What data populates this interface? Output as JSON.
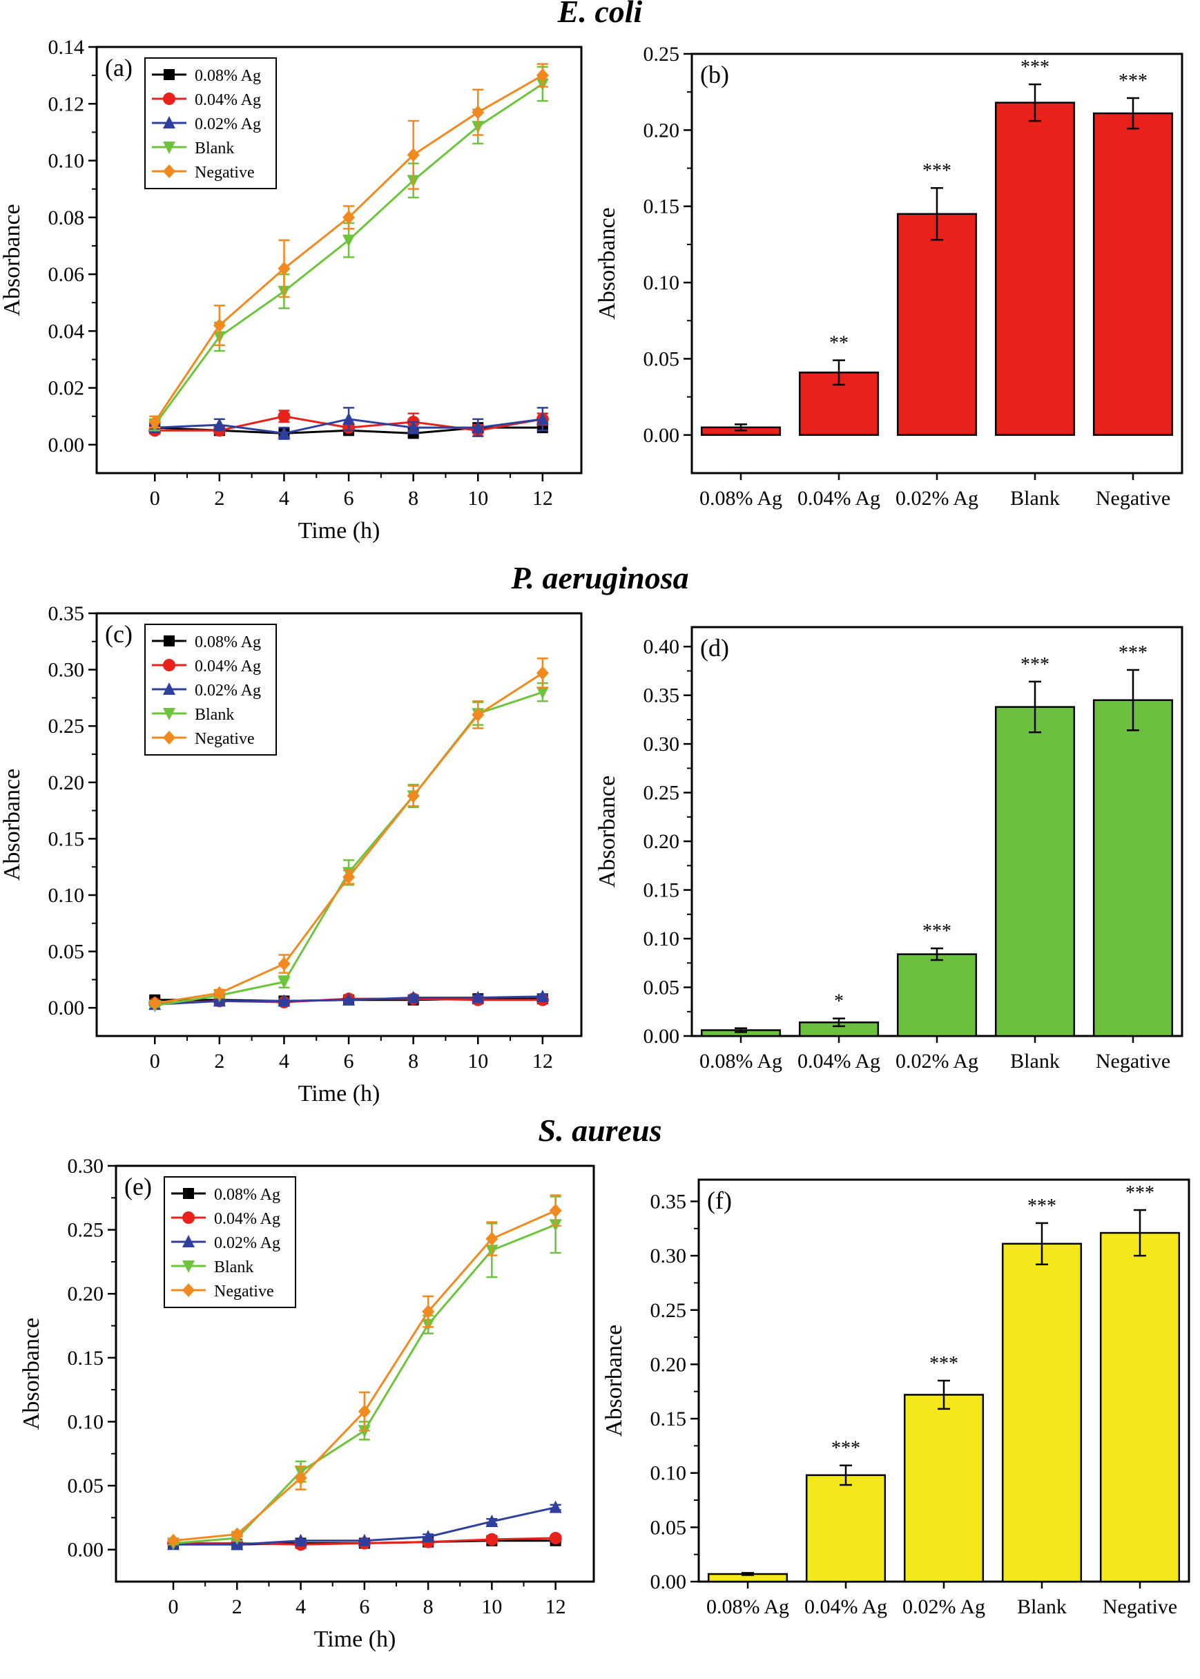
{
  "sections": [
    {
      "title": "E. coli"
    },
    {
      "title": "P. aeruginosa"
    },
    {
      "title": "S. aureus"
    }
  ],
  "colors": {
    "0.08% Ag": "#000000",
    "0.04% Ag": "#e8211a",
    "0.02% Ag": "#2e3f9e",
    "Blank": "#6cc43d",
    "Negative": "#f2891e"
  },
  "chart_data": [
    {
      "id": "a",
      "type": "line",
      "panel_label": "(a)",
      "section": "E. coli",
      "xlabel": "Time (h)",
      "ylabel": "Absorbance",
      "x": [
        0,
        2,
        4,
        6,
        8,
        10,
        12
      ],
      "xticks": [
        "0",
        "2",
        "4",
        "6",
        "8",
        "10",
        "12"
      ],
      "ylim": [
        -0.01,
        0.14
      ],
      "yticks": [
        "0.00",
        "0.02",
        "0.04",
        "0.06",
        "0.08",
        "0.10",
        "0.12",
        "0.14"
      ],
      "legend_position": "top-left",
      "series": [
        {
          "name": "0.08% Ag",
          "marker": "square",
          "values": [
            0.006,
            0.005,
            0.004,
            0.005,
            0.004,
            0.006,
            0.006
          ],
          "errors": [
            0.002,
            0.001,
            0.001,
            0.001,
            0.001,
            0.001,
            0.001
          ]
        },
        {
          "name": "0.04% Ag",
          "marker": "circle",
          "values": [
            0.005,
            0.005,
            0.01,
            0.006,
            0.008,
            0.005,
            0.009
          ],
          "errors": [
            0.001,
            0.001,
            0.002,
            0.001,
            0.003,
            0.002,
            0.002
          ]
        },
        {
          "name": "0.02% Ag",
          "marker": "triangle-up",
          "values": [
            0.006,
            0.007,
            0.004,
            0.009,
            0.006,
            0.006,
            0.009
          ],
          "errors": [
            0.001,
            0.002,
            0.002,
            0.004,
            0.002,
            0.003,
            0.004
          ]
        },
        {
          "name": "Blank",
          "marker": "triangle-down",
          "values": [
            0.007,
            0.038,
            0.054,
            0.072,
            0.093,
            0.112,
            0.127
          ],
          "errors": [
            0.002,
            0.005,
            0.006,
            0.006,
            0.006,
            0.006,
            0.006
          ]
        },
        {
          "name": "Negative",
          "marker": "diamond",
          "values": [
            0.008,
            0.042,
            0.062,
            0.08,
            0.102,
            0.117,
            0.13
          ],
          "errors": [
            0.002,
            0.007,
            0.01,
            0.004,
            0.012,
            0.008,
            0.004
          ]
        }
      ]
    },
    {
      "id": "b",
      "type": "bar",
      "panel_label": "(b)",
      "section": "E. coli",
      "xlabel": "",
      "ylabel": "Absorbance",
      "bar_color": "#e8211a",
      "categories": [
        "0.08% Ag",
        "0.04% Ag",
        "0.02% Ag",
        "Blank",
        "Negative"
      ],
      "values": [
        0.005,
        0.041,
        0.145,
        0.218,
        0.211
      ],
      "errors": [
        0.002,
        0.008,
        0.017,
        0.012,
        0.01
      ],
      "significance": [
        "",
        "**",
        "***",
        "***",
        "***"
      ],
      "ylim": [
        -0.025,
        0.25
      ],
      "yticks": [
        "0.00",
        "0.05",
        "0.10",
        "0.15",
        "0.20",
        "0.25"
      ]
    },
    {
      "id": "c",
      "type": "line",
      "panel_label": "(c)",
      "section": "P. aeruginosa",
      "xlabel": "Time (h)",
      "ylabel": "Absorbance",
      "x": [
        0,
        2,
        4,
        6,
        8,
        10,
        12
      ],
      "xticks": [
        "0",
        "2",
        "4",
        "6",
        "8",
        "10",
        "12"
      ],
      "ylim": [
        -0.025,
        0.35
      ],
      "yticks": [
        "0.00",
        "0.05",
        "0.10",
        "0.15",
        "0.20",
        "0.25",
        "0.30",
        "0.35"
      ],
      "legend_position": "top-left",
      "series": [
        {
          "name": "0.08% Ag",
          "marker": "square",
          "values": [
            0.007,
            0.007,
            0.006,
            0.007,
            0.007,
            0.008,
            0.008
          ],
          "errors": [
            0.002,
            0.001,
            0.001,
            0.001,
            0.001,
            0.001,
            0.001
          ]
        },
        {
          "name": "0.04% Ag",
          "marker": "circle",
          "values": [
            0.004,
            0.006,
            0.005,
            0.008,
            0.008,
            0.007,
            0.007
          ],
          "errors": [
            0.001,
            0.001,
            0.001,
            0.002,
            0.002,
            0.002,
            0.002
          ]
        },
        {
          "name": "0.02% Ag",
          "marker": "triangle-up",
          "values": [
            0.003,
            0.006,
            0.006,
            0.007,
            0.009,
            0.009,
            0.01
          ],
          "errors": [
            0.001,
            0.001,
            0.001,
            0.001,
            0.002,
            0.002,
            0.002
          ]
        },
        {
          "name": "Blank",
          "marker": "triangle-down",
          "values": [
            0.002,
            0.011,
            0.023,
            0.12,
            0.188,
            0.261,
            0.28
          ],
          "errors": [
            0.001,
            0.002,
            0.005,
            0.011,
            0.01,
            0.01,
            0.008
          ]
        },
        {
          "name": "Negative",
          "marker": "diamond",
          "values": [
            0.004,
            0.013,
            0.039,
            0.116,
            0.188,
            0.26,
            0.297
          ],
          "errors": [
            0.001,
            0.003,
            0.008,
            0.006,
            0.009,
            0.012,
            0.013
          ]
        }
      ]
    },
    {
      "id": "d",
      "type": "bar",
      "panel_label": "(d)",
      "section": "P. aeruginosa",
      "xlabel": "",
      "ylabel": "Absorbance",
      "bar_color": "#6cbf3f",
      "categories": [
        "0.08% Ag",
        "0.04% Ag",
        "0.02% Ag",
        "Blank",
        "Negative"
      ],
      "values": [
        0.006,
        0.014,
        0.084,
        0.338,
        0.345
      ],
      "errors": [
        0.002,
        0.004,
        0.006,
        0.026,
        0.031
      ],
      "significance": [
        "",
        "*",
        "***",
        "***",
        "***"
      ],
      "ylim": [
        0,
        0.42
      ],
      "yticks": [
        "0.00",
        "0.05",
        "0.10",
        "0.15",
        "0.20",
        "0.25",
        "0.30",
        "0.35",
        "0.40"
      ]
    },
    {
      "id": "e",
      "type": "line",
      "panel_label": "(e)",
      "section": "S. aureus",
      "xlabel": "Time (h)",
      "ylabel": "Absorbance",
      "x": [
        0,
        2,
        4,
        6,
        8,
        10,
        12
      ],
      "xticks": [
        "0",
        "2",
        "4",
        "6",
        "8",
        "10",
        "12"
      ],
      "ylim": [
        -0.025,
        0.3
      ],
      "yticks": [
        "0.00",
        "0.05",
        "0.10",
        "0.15",
        "0.20",
        "0.25",
        "0.30"
      ],
      "legend_position": "top-left",
      "series": [
        {
          "name": "0.08% Ag",
          "marker": "square",
          "values": [
            0.005,
            0.004,
            0.005,
            0.005,
            0.006,
            0.007,
            0.007
          ],
          "errors": [
            0.001,
            0.001,
            0.001,
            0.001,
            0.001,
            0.001,
            0.001
          ]
        },
        {
          "name": "0.04% Ag",
          "marker": "circle",
          "values": [
            0.005,
            0.005,
            0.004,
            0.005,
            0.006,
            0.008,
            0.009
          ],
          "errors": [
            0.001,
            0.001,
            0.001,
            0.001,
            0.001,
            0.002,
            0.002
          ]
        },
        {
          "name": "0.02% Ag",
          "marker": "triangle-up",
          "values": [
            0.004,
            0.004,
            0.007,
            0.007,
            0.01,
            0.022,
            0.033
          ],
          "errors": [
            0.001,
            0.001,
            0.001,
            0.001,
            0.002,
            0.002,
            0.002
          ]
        },
        {
          "name": "Blank",
          "marker": "triangle-down",
          "values": [
            0.005,
            0.009,
            0.061,
            0.093,
            0.176,
            0.234,
            0.254
          ],
          "errors": [
            0.001,
            0.002,
            0.008,
            0.007,
            0.007,
            0.021,
            0.022
          ]
        },
        {
          "name": "Negative",
          "marker": "diamond",
          "values": [
            0.007,
            0.012,
            0.056,
            0.108,
            0.186,
            0.243,
            0.265
          ],
          "errors": [
            0.001,
            0.002,
            0.009,
            0.015,
            0.012,
            0.013,
            0.012
          ]
        }
      ]
    },
    {
      "id": "f",
      "type": "bar",
      "panel_label": "(f)",
      "section": "S. aureus",
      "xlabel": "",
      "ylabel": "Absorbance",
      "bar_color": "#f5e81a",
      "categories": [
        "0.08% Ag",
        "0.04% Ag",
        "0.02% Ag",
        "Blank",
        "Negative"
      ],
      "values": [
        0.007,
        0.098,
        0.172,
        0.311,
        0.321
      ],
      "errors": [
        0.001,
        0.009,
        0.013,
        0.019,
        0.021
      ],
      "significance": [
        "",
        "***",
        "***",
        "***",
        "***"
      ],
      "ylim": [
        0,
        0.37
      ],
      "yticks": [
        "0.00",
        "0.05",
        "0.10",
        "0.15",
        "0.20",
        "0.25",
        "0.30",
        "0.35"
      ]
    }
  ]
}
